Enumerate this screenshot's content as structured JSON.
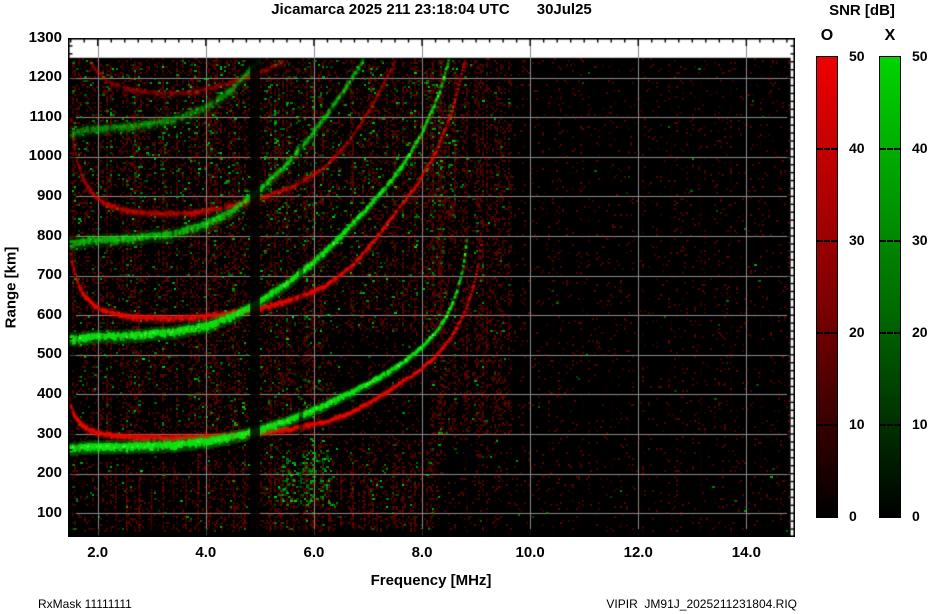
{
  "header": {
    "title": "Jicamarca 2025 211 23:18:04 UTC",
    "date": "30Jul25"
  },
  "colorbar": {
    "title": "SNR [dB]",
    "bars": [
      {
        "label": "O",
        "top_color": "#ee0000"
      },
      {
        "label": "X",
        "top_color": "#00d400"
      }
    ],
    "tick_values": [
      50,
      40,
      30,
      20,
      10,
      0
    ],
    "tick_labels": [
      "50",
      "40",
      "30",
      "20",
      "10",
      "0"
    ],
    "dash_values": [
      40,
      30,
      20,
      10
    ]
  },
  "footer": {
    "left": "RxMask 11111111",
    "right": "VIPIR  JM91J_2025211231804.RIQ"
  },
  "chart_data": {
    "type": "heatmap",
    "title": "Jicamarca 2025 211 23:18:04 UTC 30Jul25",
    "xlabel": "Frequency [MHz]",
    "ylabel": "Range [km]",
    "legend": "SNR [dB], O-mode red, X-mode green, scale 0-50 dB",
    "x_range": [
      1.45,
      14.9
    ],
    "y_range": [
      40,
      1300
    ],
    "x_major_ticks": [
      2,
      4,
      6,
      8,
      10,
      12,
      14
    ],
    "x_tick_labels": [
      "2.0",
      "4.0",
      "6.0",
      "8.0",
      "10.0",
      "12.0",
      "14.0"
    ],
    "x_minor_step": 0.25,
    "y_major_ticks": [
      100,
      200,
      300,
      400,
      500,
      600,
      700,
      800,
      900,
      1000,
      1100,
      1200,
      1300
    ],
    "y_minor_step": 20,
    "grid": true,
    "grid_color": "#8a8a8a",
    "background": "#000000",
    "data_top_km": 1250,
    "data_right_mhz": 14.82,
    "snr_scale_db": [
      0,
      50
    ],
    "modes": {
      "o": {
        "name": "O-mode",
        "color_rgb": [
          232,
          10,
          0
        ],
        "critical_frequency_mhz": 9.13
      },
      "x": {
        "name": "X-mode",
        "color_rgb": [
          15,
          230,
          18
        ],
        "critical_frequency_mhz": 8.84
      }
    },
    "traces": {
      "o_points": [
        [
          1.45,
          398
        ],
        [
          1.52,
          360
        ],
        [
          1.62,
          335
        ],
        [
          1.75,
          318
        ],
        [
          1.95,
          305
        ],
        [
          2.2,
          297
        ],
        [
          2.6,
          292
        ],
        [
          3.2,
          290
        ],
        [
          3.8,
          291
        ],
        [
          4.4,
          296
        ],
        [
          5.0,
          303
        ],
        [
          5.6,
          313
        ],
        [
          6.2,
          330
        ],
        [
          6.7,
          355
        ],
        [
          7.1,
          385
        ],
        [
          7.5,
          420
        ],
        [
          7.9,
          455
        ],
        [
          8.25,
          495
        ],
        [
          8.55,
          545
        ],
        [
          8.8,
          610
        ],
        [
          8.95,
          672
        ],
        [
          9.05,
          730
        ],
        [
          9.11,
          790
        ]
      ],
      "x_points": [
        [
          1.45,
          264
        ],
        [
          1.8,
          267
        ],
        [
          2.6,
          269
        ],
        [
          3.4,
          273
        ],
        [
          4.0,
          281
        ],
        [
          4.5,
          293
        ],
        [
          5.0,
          311
        ],
        [
          5.5,
          333
        ],
        [
          6.0,
          360
        ],
        [
          6.5,
          392
        ],
        [
          6.9,
          420
        ],
        [
          7.3,
          450
        ],
        [
          7.65,
          480
        ],
        [
          8.0,
          520
        ],
        [
          8.3,
          565
        ],
        [
          8.5,
          610
        ],
        [
          8.65,
          662
        ],
        [
          8.76,
          720
        ],
        [
          8.83,
          790
        ]
      ]
    },
    "hops": [
      {
        "mult": 1.0,
        "brightness": 1.0
      },
      {
        "mult": 2.04,
        "brightness": 0.9
      },
      {
        "mult": 2.95,
        "brightness": 0.5
      },
      {
        "mult": 4.0,
        "brightness": 0.3
      }
    ],
    "noise_patches": [
      [
        1.45,
        9.7,
        55,
        1250,
        0.1,
        0.03
      ],
      [
        9.7,
        14.82,
        55,
        1250,
        0.06,
        0.02
      ],
      [
        1.5,
        8.4,
        560,
        845,
        0.22,
        0.1
      ],
      [
        1.5,
        8.6,
        845,
        1248,
        0.26,
        0.14
      ],
      [
        1.6,
        6.4,
        300,
        560,
        0.2,
        0.08
      ],
      [
        4.6,
        8.3,
        60,
        300,
        0.16,
        0.07
      ],
      [
        8.15,
        9.65,
        300,
        1248,
        0.22,
        0.04
      ],
      [
        1.45,
        7.9,
        55,
        230,
        0.1,
        0.05
      ],
      [
        5.4,
        6.3,
        120,
        260,
        0.12,
        0.5
      ]
    ],
    "rfi_short_lines": {
      "freqs": [
        2.32,
        2.52,
        2.76,
        2.98,
        3.2,
        3.39,
        3.62,
        3.84,
        4.05,
        4.28,
        4.5,
        4.71,
        4.94,
        5.17,
        5.38,
        5.61,
        5.83,
        6.04,
        6.27,
        6.49,
        6.71,
        6.92
      ],
      "r0": 58,
      "r1": 235,
      "alpha": 0.5
    },
    "rfi_faint_lines": {
      "freqs": [
        2.2,
        3.34,
        4.42,
        5.55,
        6.6,
        7.72,
        8.28,
        8.82,
        9.35,
        9.86,
        10.42,
        10.95,
        11.5,
        12.06,
        12.6,
        13.14,
        13.7,
        14.25
      ],
      "r0": 55,
      "r1": 1248,
      "alpha": 0.1
    },
    "streaks": [
      [
        5.3,
        145,
        6.08,
        252,
        "x",
        0.55
      ],
      [
        4.95,
        495,
        5.65,
        428,
        "o",
        0.3
      ],
      [
        5.5,
        468,
        6.15,
        408,
        "x",
        0.28
      ],
      [
        5.35,
        658,
        5.95,
        600,
        "o",
        0.28
      ],
      [
        6.15,
        432,
        6.78,
        380,
        "x",
        0.22
      ],
      [
        9.06,
        340,
        9.28,
        760,
        "o",
        0.22
      ]
    ],
    "gaps": [
      [
        4.82,
        5.0,
        0.85
      ],
      [
        5.72,
        5.8,
        0.5
      ]
    ],
    "seed": 7
  }
}
